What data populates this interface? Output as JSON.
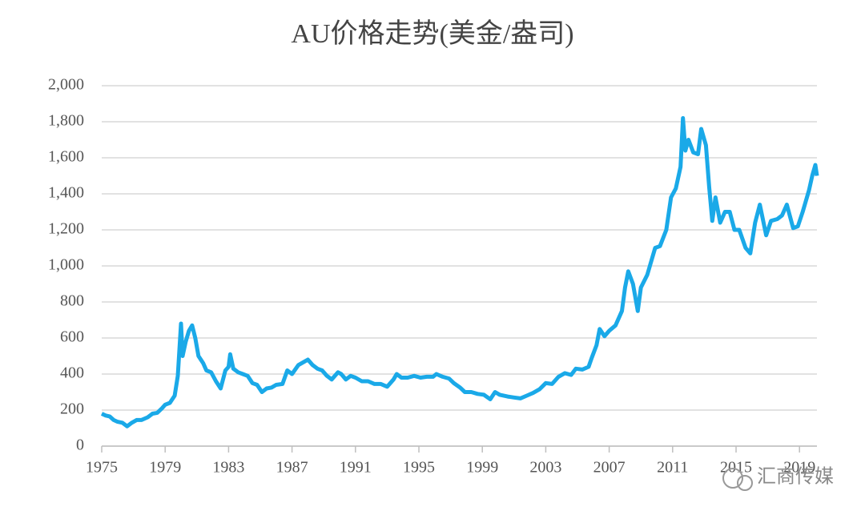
{
  "chart_data": {
    "type": "line",
    "title": "AU价格走势(美金/盎司)",
    "watermark": "汇商传媒",
    "x": [
      1975.0,
      1975.25,
      1975.5,
      1975.75,
      1976.0,
      1976.3,
      1976.6,
      1976.9,
      1977.2,
      1977.5,
      1977.9,
      1978.2,
      1978.5,
      1978.8,
      1979.0,
      1979.3,
      1979.6,
      1979.8,
      1980.0,
      1980.1,
      1980.3,
      1980.5,
      1980.7,
      1980.9,
      1981.1,
      1981.4,
      1981.6,
      1981.9,
      1982.2,
      1982.5,
      1982.8,
      1983.0,
      1983.1,
      1983.3,
      1983.6,
      1983.9,
      1984.2,
      1984.5,
      1984.8,
      1985.1,
      1985.4,
      1985.7,
      1986.0,
      1986.4,
      1986.7,
      1987.0,
      1987.4,
      1987.8,
      1988.0,
      1988.3,
      1988.6,
      1988.9,
      1989.2,
      1989.5,
      1989.9,
      1990.1,
      1990.4,
      1990.7,
      1991.0,
      1991.4,
      1991.8,
      1992.2,
      1992.6,
      1993.0,
      1993.4,
      1993.6,
      1993.9,
      1994.3,
      1994.7,
      1995.1,
      1995.5,
      1995.9,
      1996.1,
      1996.5,
      1996.9,
      1997.2,
      1997.6,
      1997.9,
      1998.3,
      1998.7,
      1999.1,
      1999.5,
      1999.8,
      2000.1,
      2000.6,
      2001.0,
      2001.4,
      2001.8,
      2002.2,
      2002.6,
      2003.0,
      2003.4,
      2003.8,
      2004.2,
      2004.6,
      2004.9,
      2005.3,
      2005.7,
      2005.9,
      2006.2,
      2006.4,
      2006.7,
      2007.0,
      2007.4,
      2007.8,
      2008.0,
      2008.2,
      2008.5,
      2008.8,
      2009.0,
      2009.4,
      2009.9,
      2010.2,
      2010.6,
      2010.9,
      2011.2,
      2011.5,
      2011.65,
      2011.8,
      2012.0,
      2012.3,
      2012.6,
      2012.8,
      2013.1,
      2013.3,
      2013.5,
      2013.7,
      2014.0,
      2014.3,
      2014.6,
      2014.9,
      2015.2,
      2015.6,
      2015.9,
      2016.2,
      2016.5,
      2016.9,
      2017.2,
      2017.6,
      2017.9,
      2018.2,
      2018.6,
      2018.9,
      2019.2,
      2019.6,
      2019.8,
      2020.0,
      2020.1
    ],
    "values": [
      180,
      170,
      165,
      145,
      135,
      130,
      110,
      130,
      145,
      145,
      160,
      180,
      185,
      210,
      230,
      240,
      280,
      390,
      680,
      500,
      580,
      640,
      670,
      600,
      500,
      460,
      420,
      410,
      360,
      320,
      420,
      440,
      510,
      430,
      410,
      400,
      390,
      350,
      340,
      300,
      320,
      325,
      340,
      345,
      420,
      400,
      450,
      470,
      480,
      450,
      430,
      420,
      390,
      370,
      410,
      400,
      370,
      390,
      380,
      360,
      360,
      345,
      345,
      330,
      370,
      400,
      380,
      380,
      390,
      380,
      385,
      385,
      400,
      385,
      375,
      350,
      325,
      300,
      300,
      290,
      285,
      260,
      300,
      285,
      275,
      270,
      265,
      280,
      295,
      315,
      350,
      345,
      385,
      405,
      395,
      430,
      425,
      440,
      490,
      560,
      650,
      610,
      640,
      670,
      750,
      880,
      970,
      900,
      750,
      880,
      950,
      1100,
      1110,
      1200,
      1380,
      1430,
      1550,
      1820,
      1640,
      1700,
      1630,
      1620,
      1760,
      1670,
      1440,
      1250,
      1380,
      1240,
      1300,
      1300,
      1200,
      1200,
      1100,
      1070,
      1240,
      1340,
      1170,
      1250,
      1260,
      1280,
      1340,
      1210,
      1220,
      1300,
      1420,
      1500,
      1560,
      1500
    ],
    "color": "#1aa9e8",
    "xlim": [
      1975,
      2020.1
    ],
    "xticks": [
      1975,
      1979,
      1983,
      1987,
      1991,
      1995,
      1999,
      2003,
      2007,
      2011,
      2015,
      2019
    ],
    "ylim": [
      0,
      2000
    ],
    "yticks": [
      0,
      200,
      400,
      600,
      800,
      {
        "value": 1000,
        "label": "1,000"
      },
      {
        "value": 1200,
        "label": "1,200"
      },
      {
        "value": 1400,
        "label": "1,400"
      },
      {
        "value": 1600,
        "label": "1,600"
      },
      {
        "value": 1800,
        "label": "1,800"
      },
      {
        "value": 2000,
        "label": "2,000"
      }
    ],
    "grid": true
  }
}
